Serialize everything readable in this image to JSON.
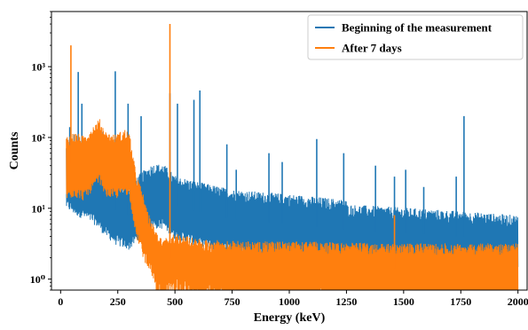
{
  "chart_data": {
    "type": "line",
    "title": "",
    "xlabel": "Energy (keV)",
    "ylabel": "Counts",
    "xlim": [
      -40,
      2040
    ],
    "ylim": [
      0.7,
      6000
    ],
    "yscale": "log",
    "grid": false,
    "legend_position": "top-right",
    "x_ticks": [
      0,
      250,
      500,
      750,
      1000,
      1250,
      1500,
      1750,
      2000
    ],
    "x_tick_labels": [
      "0",
      "250",
      "500",
      "750",
      "1000",
      "1250",
      "1500",
      "1750",
      "2000"
    ],
    "y_ticks": [
      1,
      10,
      100,
      1000
    ],
    "y_tick_labels": [
      "10⁰",
      "10¹",
      "10²",
      "10³"
    ],
    "series": [
      {
        "name": "Beginning of the measurement",
        "color": "#1f77b4",
        "baseline": [
          [
            25,
            30
          ],
          [
            60,
            25
          ],
          [
            100,
            22
          ],
          [
            150,
            18
          ],
          [
            200,
            12
          ],
          [
            250,
            9
          ],
          [
            300,
            8
          ],
          [
            350,
            12
          ],
          [
            400,
            16
          ],
          [
            450,
            16
          ],
          [
            500,
            11
          ],
          [
            600,
            9
          ],
          [
            750,
            7
          ],
          [
            1000,
            6
          ],
          [
            1250,
            5
          ],
          [
            1500,
            4.5
          ],
          [
            1750,
            4
          ],
          [
            2000,
            3.5
          ]
        ],
        "peaks": [
          [
            28,
            70
          ],
          [
            40,
            140
          ],
          [
            60,
            110
          ],
          [
            77,
            840
          ],
          [
            93,
            300
          ],
          [
            185,
            120
          ],
          [
            239,
            860
          ],
          [
            295,
            300
          ],
          [
            352,
            200
          ],
          [
            478,
            420
          ],
          [
            511,
            300
          ],
          [
            583,
            340
          ],
          [
            609,
            460
          ],
          [
            727,
            80
          ],
          [
            768,
            35
          ],
          [
            911,
            60
          ],
          [
            969,
            45
          ],
          [
            1120,
            95
          ],
          [
            1238,
            60
          ],
          [
            1377,
            40
          ],
          [
            1460,
            28
          ],
          [
            1509,
            35
          ],
          [
            1588,
            20
          ],
          [
            1730,
            28
          ],
          [
            1764,
            200
          ]
        ]
      },
      {
        "name": "After 7 days",
        "color": "#ff7f0e",
        "baseline": [
          [
            25,
            40
          ],
          [
            60,
            45
          ],
          [
            100,
            40
          ],
          [
            150,
            60
          ],
          [
            170,
            70
          ],
          [
            200,
            45
          ],
          [
            240,
            42
          ],
          [
            280,
            50
          ],
          [
            300,
            45
          ],
          [
            330,
            12
          ],
          [
            380,
            4
          ],
          [
            420,
            2
          ],
          [
            450,
            1.5
          ],
          [
            480,
            2
          ],
          [
            500,
            2
          ],
          [
            600,
            1.6
          ],
          [
            800,
            1.5
          ],
          [
            1000,
            1.5
          ],
          [
            1500,
            1.4
          ],
          [
            2000,
            1.4
          ]
        ],
        "peaks": [
          [
            45,
            2000
          ],
          [
            90,
            80
          ],
          [
            478,
            4000
          ],
          [
            1460,
            8
          ]
        ]
      }
    ]
  }
}
